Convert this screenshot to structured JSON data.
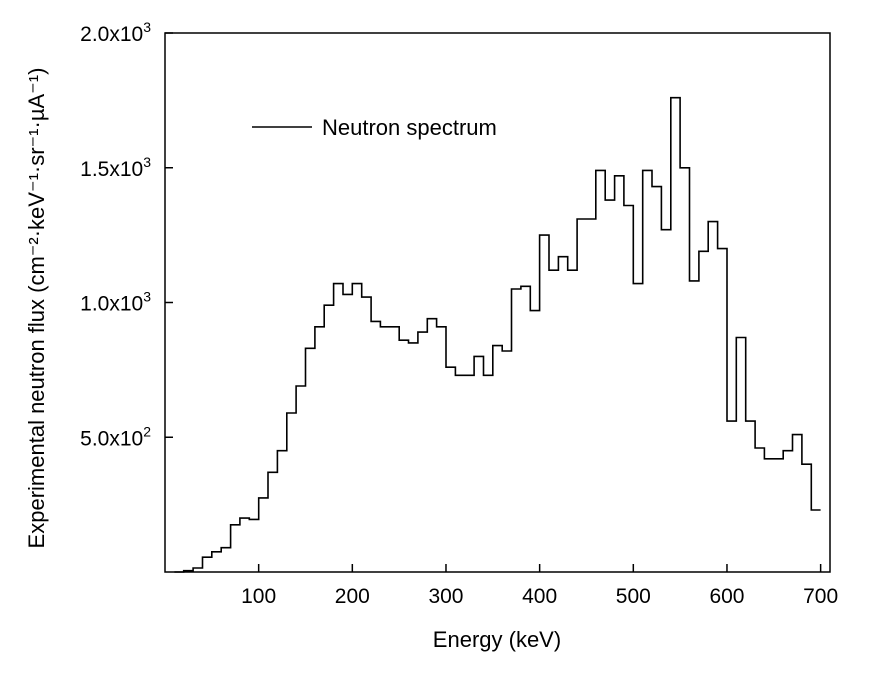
{
  "chart_data": {
    "type": "line",
    "style": "step",
    "xlabel": "Energy (keV)",
    "ylabel": "Experimental neutron flux (cm⁻²·keV⁻¹·sr⁻¹·µA⁻¹)",
    "xlim": [
      0,
      710
    ],
    "ylim": [
      0,
      2000
    ],
    "x_ticks": [
      100,
      200,
      300,
      400,
      500,
      600,
      700
    ],
    "x_tick_labels": [
      "100",
      "200",
      "300",
      "400",
      "500",
      "600",
      "700"
    ],
    "y_ticks": [
      500,
      1000,
      1500,
      2000
    ],
    "y_tick_labels": [
      {
        "mantissa": "5.0x10",
        "exp": "2"
      },
      {
        "mantissa": "1.0x10",
        "exp": "3"
      },
      {
        "mantissa": "1.5x10",
        "exp": "3"
      },
      {
        "mantissa": "2.0x10",
        "exp": "3"
      }
    ],
    "legend_position": "top-left",
    "grid": false,
    "series": [
      {
        "name": "Neutron spectrum",
        "color": "#000000",
        "x": [
          15,
          25,
          35,
          45,
          55,
          65,
          75,
          85,
          95,
          105,
          115,
          125,
          135,
          145,
          155,
          165,
          175,
          185,
          195,
          205,
          215,
          225,
          235,
          245,
          255,
          265,
          275,
          285,
          295,
          305,
          315,
          325,
          335,
          345,
          355,
          365,
          375,
          385,
          395,
          405,
          415,
          425,
          435,
          445,
          455,
          465,
          475,
          485,
          495,
          505,
          515,
          525,
          535,
          545,
          555,
          565,
          575,
          585,
          595,
          605,
          615,
          625,
          635,
          645,
          655,
          665,
          675,
          685,
          695
        ],
        "values": [
          0,
          5,
          15,
          55,
          75,
          90,
          175,
          200,
          195,
          275,
          370,
          450,
          590,
          690,
          830,
          910,
          990,
          1070,
          1030,
          1070,
          1020,
          930,
          910,
          910,
          860,
          850,
          890,
          940,
          910,
          760,
          730,
          730,
          800,
          730,
          840,
          820,
          1050,
          1060,
          970,
          1250,
          1120,
          1170,
          1120,
          1310,
          1310,
          1490,
          1380,
          1470,
          1360,
          1070,
          1490,
          1430,
          1270,
          1760,
          1500,
          1080,
          1190,
          1300,
          1200,
          560,
          870,
          560,
          460,
          420,
          420,
          450,
          510,
          400,
          230
        ]
      }
    ]
  }
}
